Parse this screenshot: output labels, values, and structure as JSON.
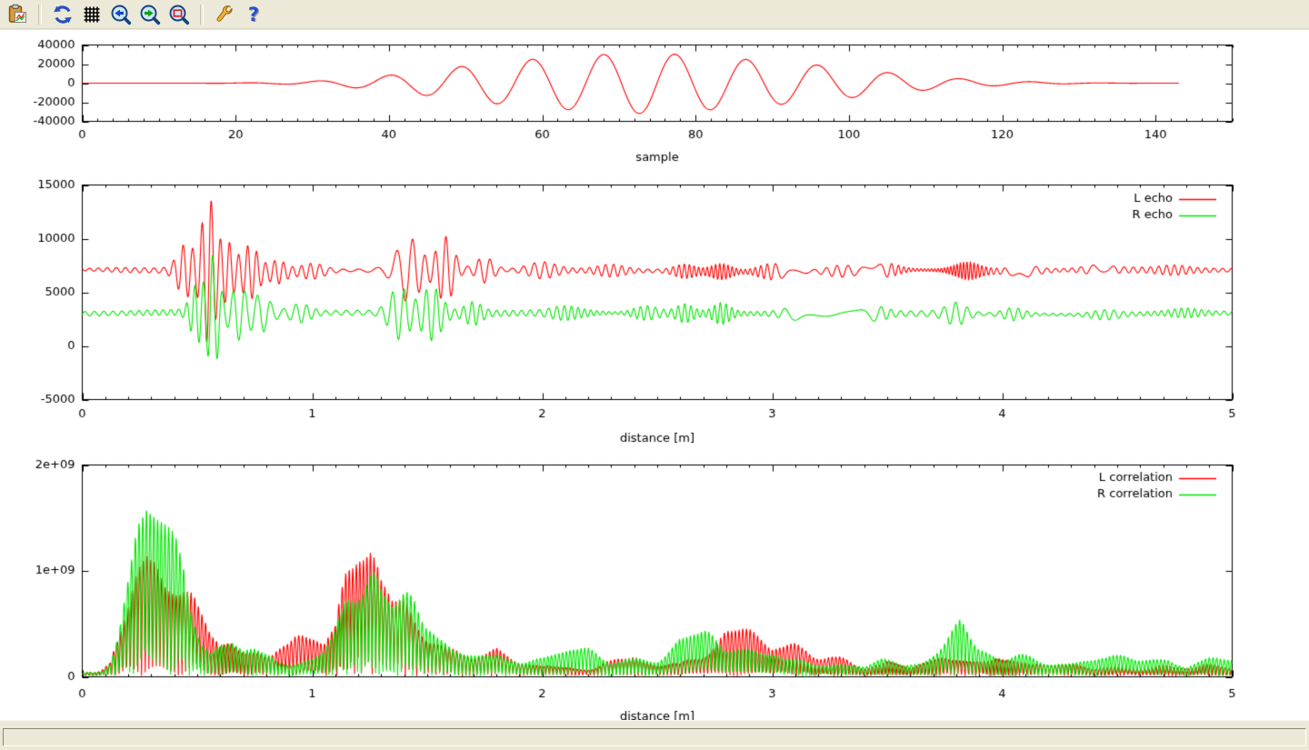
{
  "window": {
    "background": "#ece9d8",
    "plot_background": "#ffffff",
    "accent_red": "#ff0000",
    "accent_green": "#00e600"
  },
  "toolbar": {
    "buttons": [
      {
        "icon": "export-clipboard-icon",
        "group": 0
      },
      {
        "icon": "replot-icon",
        "group": 1
      },
      {
        "icon": "grid-icon",
        "group": 1
      },
      {
        "icon": "zoom-previous-icon",
        "group": 1
      },
      {
        "icon": "zoom-next-icon",
        "group": 1
      },
      {
        "icon": "zoom-autoscale-icon",
        "group": 1
      },
      {
        "icon": "configure-icon",
        "group": 2
      },
      {
        "icon": "help-icon",
        "group": 2
      }
    ]
  },
  "status_bar": {
    "text": ""
  },
  "chart_data": [
    {
      "type": "line",
      "title": "",
      "xlabel": "sample",
      "ylabel": "",
      "xlim": [
        0,
        150
      ],
      "ylim": [
        -40000,
        40000
      ],
      "grid": false,
      "xticks": {
        "major": [
          0,
          20,
          40,
          60,
          80,
          100,
          120,
          140
        ],
        "labels": [
          "0",
          "20",
          "40",
          "60",
          "80",
          "100",
          "120",
          "140"
        ],
        "minor_step": 2
      },
      "yticks": {
        "major": [
          -40000,
          -20000,
          0,
          20000,
          40000
        ],
        "labels": [
          "-40000",
          "-20000",
          "0",
          "20000",
          "40000"
        ]
      },
      "legend": null,
      "series": [
        {
          "name": "",
          "color": "#ff0000",
          "gen": "chirp",
          "carrier_period": 9.3,
          "peak_sample": 68,
          "data_end": 143,
          "envelope": [
            [
              0,
              0
            ],
            [
              14,
              0
            ],
            [
              18,
              150
            ],
            [
              22,
              400
            ],
            [
              26,
              900
            ],
            [
              30,
              2000
            ],
            [
              34,
              3800
            ],
            [
              38,
              6500
            ],
            [
              42,
              10000
            ],
            [
              46,
              14000
            ],
            [
              50,
              18000
            ],
            [
              54,
              21500
            ],
            [
              58,
              24500
            ],
            [
              62,
              27000
            ],
            [
              66,
              29000
            ],
            [
              70,
              31000
            ],
            [
              74,
              32000
            ],
            [
              78,
              30000
            ],
            [
              82,
              27800
            ],
            [
              86,
              25200
            ],
            [
              90,
              22800
            ],
            [
              94,
              20500
            ],
            [
              98,
              17200
            ],
            [
              102,
              13800
            ],
            [
              106,
              10300
            ],
            [
              110,
              7300
            ],
            [
              114,
              4900
            ],
            [
              118,
              3100
            ],
            [
              122,
              1900
            ],
            [
              126,
              1000
            ],
            [
              130,
              450
            ],
            [
              134,
              180
            ],
            [
              138,
              60
            ],
            [
              143,
              0
            ]
          ]
        }
      ]
    },
    {
      "type": "line",
      "title": "",
      "xlabel": "distance [m]",
      "ylabel": "",
      "xlim": [
        0,
        5
      ],
      "ylim": [
        -5000,
        15000
      ],
      "grid": false,
      "xticks": {
        "major": [
          0,
          1,
          2,
          3,
          4,
          5
        ],
        "labels": [
          "0",
          "1",
          "2",
          "3",
          "4",
          "5"
        ],
        "minor_step": 0.1
      },
      "yticks": {
        "major": [
          -5000,
          0,
          5000,
          10000,
          15000
        ],
        "labels": [
          "-5000",
          "0",
          "5000",
          "10000",
          "15000"
        ]
      },
      "legend": {
        "position": "top-right",
        "entries": [
          "L echo",
          "R echo"
        ]
      },
      "series": [
        {
          "name": "L echo",
          "color": "#ff0000",
          "gen": "echo",
          "baseline": 7000,
          "carrier_period": 0.04,
          "base_amp": 260,
          "bursts": [
            [
              0.45,
              2300,
              0.05
            ],
            [
              0.55,
              6700,
              0.04
            ],
            [
              0.63,
              2500,
              0.04
            ],
            [
              0.73,
              2300,
              0.05
            ],
            [
              0.85,
              900,
              0.05
            ],
            [
              1.0,
              600,
              0.07
            ],
            [
              1.42,
              2800,
              0.07
            ],
            [
              1.58,
              2900,
              0.05
            ],
            [
              1.75,
              1100,
              0.05
            ],
            [
              2.0,
              550,
              0.08
            ],
            [
              2.3,
              450,
              0.08
            ],
            [
              2.62,
              500,
              0.06
            ],
            [
              2.78,
              650,
              0.06
            ],
            [
              3.0,
              600,
              0.08
            ],
            [
              3.3,
              350,
              0.08
            ],
            [
              3.5,
              550,
              0.07
            ],
            [
              3.85,
              650,
              0.07
            ],
            [
              4.1,
              350,
              0.07
            ],
            [
              4.4,
              280,
              0.08
            ],
            [
              4.75,
              260,
              0.08
            ]
          ]
        },
        {
          "name": "R echo",
          "color": "#00e600",
          "gen": "echo",
          "baseline": 3000,
          "carrier_period": 0.04,
          "base_amp": 280,
          "bursts": [
            [
              0.5,
              2400,
              0.04
            ],
            [
              0.57,
              5000,
              0.035
            ],
            [
              0.68,
              2300,
              0.05
            ],
            [
              0.78,
              1500,
              0.05
            ],
            [
              0.95,
              700,
              0.06
            ],
            [
              1.38,
              2300,
              0.06
            ],
            [
              1.52,
              2400,
              0.06
            ],
            [
              1.7,
              900,
              0.05
            ],
            [
              2.1,
              450,
              0.08
            ],
            [
              2.45,
              500,
              0.07
            ],
            [
              2.62,
              700,
              0.05
            ],
            [
              2.78,
              850,
              0.05
            ],
            [
              3.1,
              400,
              0.08
            ],
            [
              3.45,
              500,
              0.07
            ],
            [
              3.8,
              950,
              0.06
            ],
            [
              4.05,
              500,
              0.06
            ],
            [
              4.45,
              350,
              0.08
            ],
            [
              4.8,
              300,
              0.08
            ]
          ]
        }
      ]
    },
    {
      "type": "line",
      "title": "",
      "xlabel": "distance [m]",
      "ylabel": "",
      "xlim": [
        0,
        5
      ],
      "ylim": [
        0,
        2000000000.0
      ],
      "grid": false,
      "xticks": {
        "major": [
          0,
          1,
          2,
          3,
          4,
          5
        ],
        "labels": [
          "0",
          "1",
          "2",
          "3",
          "4",
          "5"
        ],
        "minor_step": 0.1
      },
      "yticks": {
        "major": [
          0,
          1000000000.0,
          2000000000.0
        ],
        "labels": [
          "0",
          "1e+09",
          "2e+09"
        ]
      },
      "legend": {
        "position": "top-right",
        "entries": [
          "L correlation",
          "R correlation"
        ]
      },
      "series": [
        {
          "name": "L correlation",
          "color": "#ff0000",
          "gen": "correlation",
          "spike_spacing": 0.016,
          "envelope_1e9": [
            [
              0,
              0.02
            ],
            [
              0.08,
              0.04
            ],
            [
              0.12,
              0.12
            ],
            [
              0.16,
              0.45
            ],
            [
              0.2,
              0.95
            ],
            [
              0.24,
              1.6
            ],
            [
              0.28,
              2.15
            ],
            [
              0.32,
              2.1
            ],
            [
              0.36,
              1.75
            ],
            [
              0.4,
              1.65
            ],
            [
              0.44,
              1.55
            ],
            [
              0.48,
              1.35
            ],
            [
              0.52,
              0.95
            ],
            [
              0.56,
              0.55
            ],
            [
              0.6,
              0.38
            ],
            [
              0.65,
              0.5
            ],
            [
              0.7,
              0.48
            ],
            [
              0.75,
              0.35
            ],
            [
              0.8,
              0.22
            ],
            [
              0.85,
              0.28
            ],
            [
              0.9,
              0.33
            ],
            [
              0.95,
              0.48
            ],
            [
              1.0,
              0.5
            ],
            [
              1.05,
              0.35
            ],
            [
              1.1,
              0.5
            ],
            [
              1.15,
              1.3
            ],
            [
              1.2,
              1.85
            ],
            [
              1.25,
              1.55
            ],
            [
              1.3,
              1.0
            ],
            [
              1.35,
              0.8
            ],
            [
              1.4,
              0.85
            ],
            [
              1.45,
              0.65
            ],
            [
              1.5,
              0.5
            ],
            [
              1.55,
              0.4
            ],
            [
              1.6,
              0.32
            ],
            [
              1.7,
              0.2
            ],
            [
              1.8,
              0.3
            ],
            [
              1.9,
              0.18
            ],
            [
              2.0,
              0.14
            ],
            [
              2.1,
              0.12
            ],
            [
              2.2,
              0.1
            ],
            [
              2.3,
              0.16
            ],
            [
              2.4,
              0.2
            ],
            [
              2.5,
              0.14
            ],
            [
              2.6,
              0.12
            ],
            [
              2.7,
              0.28
            ],
            [
              2.8,
              0.5
            ],
            [
              2.9,
              0.5
            ],
            [
              3.0,
              0.42
            ],
            [
              3.1,
              0.38
            ],
            [
              3.2,
              0.32
            ],
            [
              3.3,
              0.22
            ],
            [
              3.4,
              0.12
            ],
            [
              3.5,
              0.22
            ],
            [
              3.6,
              0.14
            ],
            [
              3.7,
              0.16
            ],
            [
              3.8,
              0.32
            ],
            [
              3.9,
              0.28
            ],
            [
              4.0,
              0.22
            ],
            [
              4.1,
              0.14
            ],
            [
              4.2,
              0.1
            ],
            [
              4.3,
              0.1
            ],
            [
              4.4,
              0.12
            ],
            [
              4.5,
              0.09
            ],
            [
              4.6,
              0.09
            ],
            [
              4.7,
              0.12
            ],
            [
              4.8,
              0.1
            ],
            [
              4.9,
              0.14
            ],
            [
              5.0,
              0.1
            ]
          ]
        },
        {
          "name": "R correlation",
          "color": "#00e600",
          "gen": "correlation",
          "spike_spacing": 0.016,
          "envelope_1e9": [
            [
              0,
              0.02
            ],
            [
              0.08,
              0.06
            ],
            [
              0.12,
              0.2
            ],
            [
              0.16,
              0.6
            ],
            [
              0.2,
              1.1
            ],
            [
              0.24,
              1.75
            ],
            [
              0.28,
              1.95
            ],
            [
              0.32,
              1.85
            ],
            [
              0.36,
              1.7
            ],
            [
              0.4,
              1.55
            ],
            [
              0.44,
              1.35
            ],
            [
              0.48,
              0.9
            ],
            [
              0.52,
              0.5
            ],
            [
              0.56,
              0.32
            ],
            [
              0.6,
              0.42
            ],
            [
              0.65,
              0.38
            ],
            [
              0.7,
              0.25
            ],
            [
              0.75,
              0.28
            ],
            [
              0.8,
              0.22
            ],
            [
              0.85,
              0.18
            ],
            [
              0.9,
              0.2
            ],
            [
              0.95,
              0.16
            ],
            [
              1.0,
              0.16
            ],
            [
              1.05,
              0.25
            ],
            [
              1.1,
              0.55
            ],
            [
              1.15,
              1.15
            ],
            [
              1.2,
              1.55
            ],
            [
              1.25,
              1.35
            ],
            [
              1.3,
              0.85
            ],
            [
              1.35,
              0.65
            ],
            [
              1.4,
              0.78
            ],
            [
              1.45,
              0.88
            ],
            [
              1.5,
              0.8
            ],
            [
              1.55,
              0.62
            ],
            [
              1.6,
              0.42
            ],
            [
              1.65,
              0.32
            ],
            [
              1.7,
              0.3
            ],
            [
              1.8,
              0.26
            ],
            [
              1.9,
              0.2
            ],
            [
              2.0,
              0.18
            ],
            [
              2.1,
              0.26
            ],
            [
              2.2,
              0.32
            ],
            [
              2.3,
              0.2
            ],
            [
              2.4,
              0.24
            ],
            [
              2.5,
              0.26
            ],
            [
              2.6,
              0.36
            ],
            [
              2.7,
              0.42
            ],
            [
              2.75,
              0.46
            ],
            [
              2.85,
              0.35
            ],
            [
              2.95,
              0.25
            ],
            [
              3.05,
              0.22
            ],
            [
              3.15,
              0.24
            ],
            [
              3.25,
              0.16
            ],
            [
              3.35,
              0.16
            ],
            [
              3.45,
              0.2
            ],
            [
              3.55,
              0.14
            ],
            [
              3.65,
              0.18
            ],
            [
              3.75,
              0.4
            ],
            [
              3.82,
              0.64
            ],
            [
              3.9,
              0.45
            ],
            [
              4.0,
              0.28
            ],
            [
              4.1,
              0.2
            ],
            [
              4.2,
              0.16
            ],
            [
              4.3,
              0.14
            ],
            [
              4.4,
              0.22
            ],
            [
              4.5,
              0.2
            ],
            [
              4.6,
              0.24
            ],
            [
              4.7,
              0.16
            ],
            [
              4.8,
              0.14
            ],
            [
              4.9,
              0.2
            ],
            [
              5.0,
              0.14
            ]
          ]
        }
      ]
    }
  ]
}
